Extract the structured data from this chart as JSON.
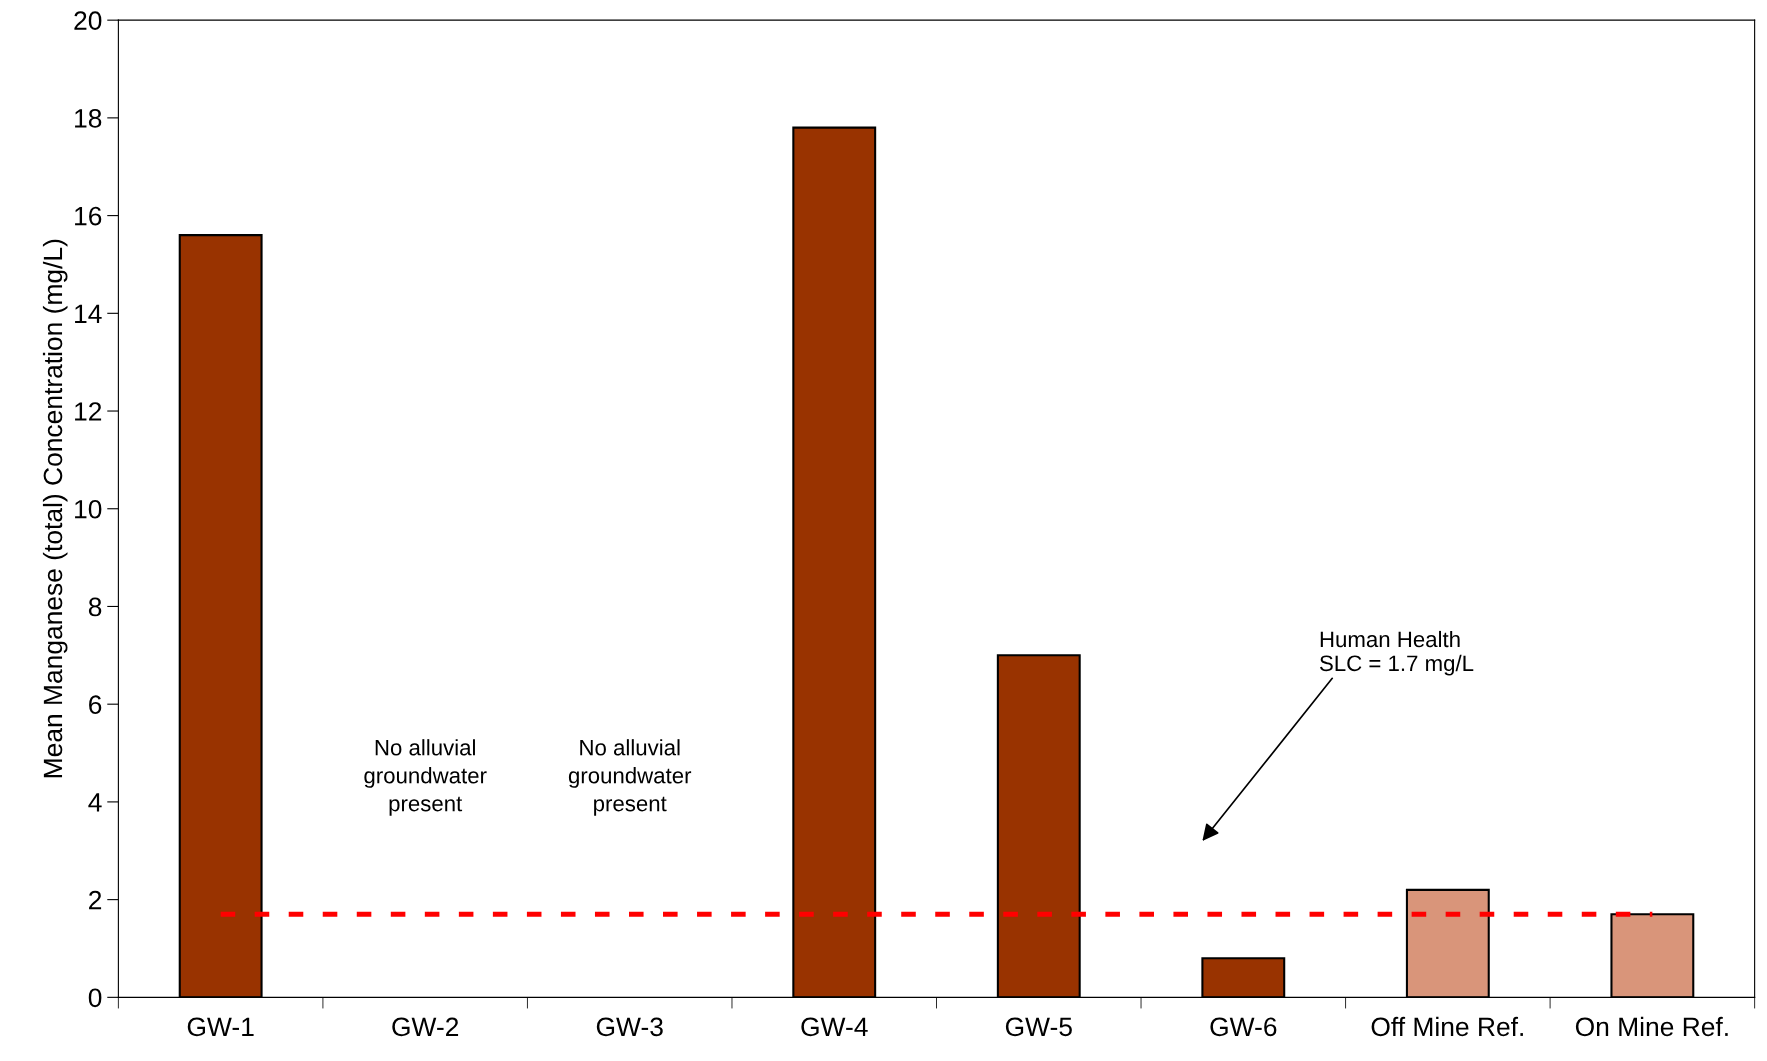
{
  "chart_data": {
    "type": "bar",
    "categories": [
      "GW-1",
      "GW-2",
      "GW-3",
      "GW-4",
      "GW-5",
      "GW-6",
      "Off Mine Ref.",
      "On Mine Ref."
    ],
    "values": [
      15.6,
      null,
      null,
      17.8,
      7.0,
      0.8,
      2.2,
      1.7
    ],
    "colors": [
      "#993300",
      "#993300",
      "#993300",
      "#993300",
      "#993300",
      "#993300",
      "#d9957a",
      "#d9957a"
    ],
    "ylabel": "Mean Manganese (total) Concentration (mg/L)",
    "ylim": [
      0,
      20
    ],
    "yticks": [
      0,
      2,
      4,
      6,
      8,
      10,
      12,
      14,
      16,
      18,
      20
    ],
    "grid": false,
    "legend": false,
    "ref_lines": [
      {
        "axis": "y",
        "value": 1.7,
        "color": "#ff0000",
        "line_style": "dashed"
      }
    ],
    "annotations": [
      "No alluvial\ngroundwater\npresent",
      "No alluvial\ngroundwater\npresent",
      "Human Health\nSLC = 1.7 mg/L"
    ]
  }
}
